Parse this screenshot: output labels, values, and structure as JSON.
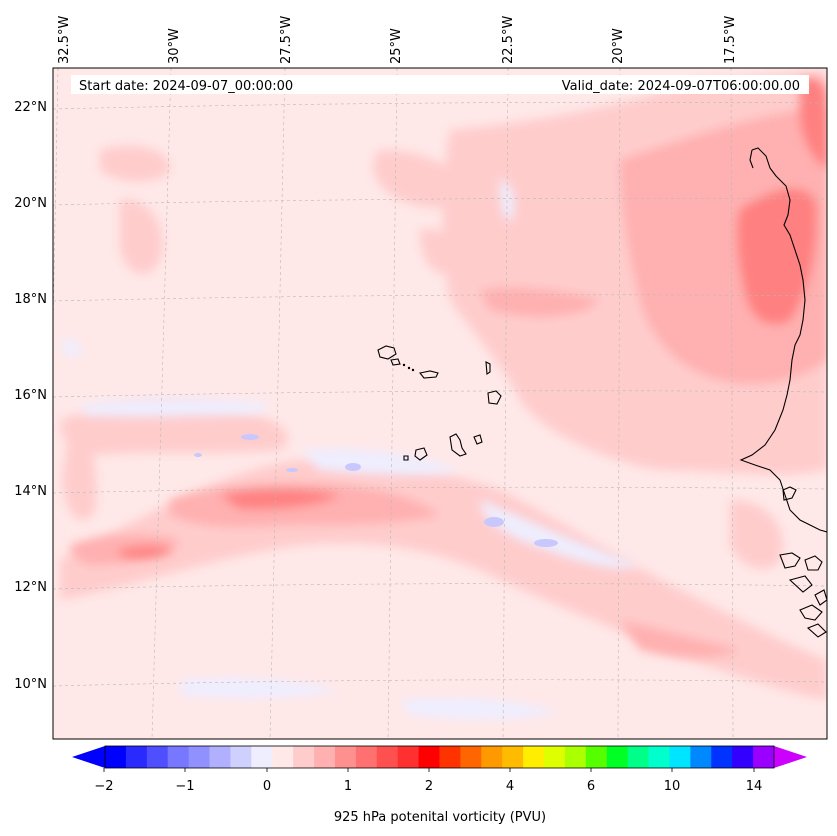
{
  "header": {
    "start_date": "Start date: 2024-09-07_00:00:00",
    "valid_date": "Valid_date: 2024-09-07T06:00:00.00"
  },
  "map": {
    "lon_labels": [
      "32.5°W",
      "30°W",
      "27.5°W",
      "25°W",
      "22.5°W",
      "20°W",
      "17.5°W"
    ],
    "lat_labels": [
      "22°N",
      "20°N",
      "18°N",
      "16°N",
      "14°N",
      "12°N",
      "10°N"
    ],
    "extent": {
      "lon": [
        -32.6,
        -15.3
      ],
      "lat": [
        8.9,
        22.8
      ]
    }
  },
  "colorbar": {
    "label": "925 hPa potenital vorticity (PVU)",
    "tick_labels": [
      "−2",
      "−1",
      "0",
      "1",
      "2",
      "4",
      "6",
      "10",
      "14"
    ],
    "colors": [
      "#0000ff",
      "#2a2aff",
      "#4f4fff",
      "#7777ff",
      "#9090ff",
      "#b0b0ff",
      "#d0d0ff",
      "#eeeeff",
      "#ffe8e8",
      "#ffcccc",
      "#ffb0b0",
      "#ff9090",
      "#ff7070",
      "#ff5050",
      "#ff3030",
      "#ff0000",
      "#ff3300",
      "#ff6600",
      "#ff9900",
      "#ffbb00",
      "#ffee00",
      "#ddff00",
      "#aaff00",
      "#55ff00",
      "#00ff22",
      "#00ff88",
      "#00ffcc",
      "#00e5ff",
      "#0088ff",
      "#0033ff",
      "#3300ff",
      "#9900ff"
    ],
    "under_color": "#0000ff",
    "over_color": "#cc00ff"
  }
}
